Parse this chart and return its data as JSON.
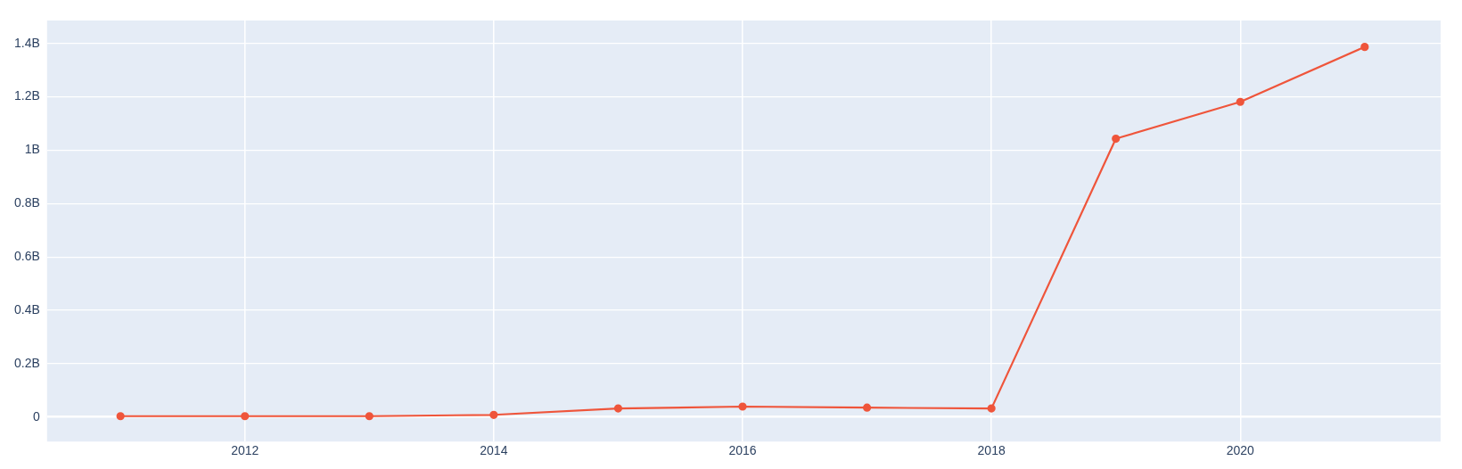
{
  "chart_data": {
    "type": "line",
    "x": [
      2011,
      2012,
      2013,
      2014,
      2015,
      2016,
      2017,
      2018,
      2019,
      2020,
      2021
    ],
    "series": [
      {
        "color": "#ef553b",
        "values": [
          0.003,
          0.003,
          0.003,
          0.008,
          0.032,
          0.039,
          0.035,
          0.032,
          1.043,
          1.181,
          1.387
        ]
      }
    ],
    "xlim": [
      2010.41,
      2021.61
    ],
    "xticks": [
      2012,
      2014,
      2016,
      2018,
      2020
    ],
    "ylim": [
      -0.092,
      1.486
    ],
    "yticks": [
      {
        "value": 0,
        "label": "0"
      },
      {
        "value": 0.2,
        "label": "0.2B"
      },
      {
        "value": 0.4,
        "label": "0.4B"
      },
      {
        "value": 0.6,
        "label": "0.6B"
      },
      {
        "value": 0.8,
        "label": "0.8B"
      },
      {
        "value": 1,
        "label": "1B"
      },
      {
        "value": 1.2,
        "label": "1.2B"
      },
      {
        "value": 1.4,
        "label": "1.4B"
      }
    ],
    "grid": true,
    "legend": false,
    "marker": "circle",
    "line_style": "solid"
  }
}
